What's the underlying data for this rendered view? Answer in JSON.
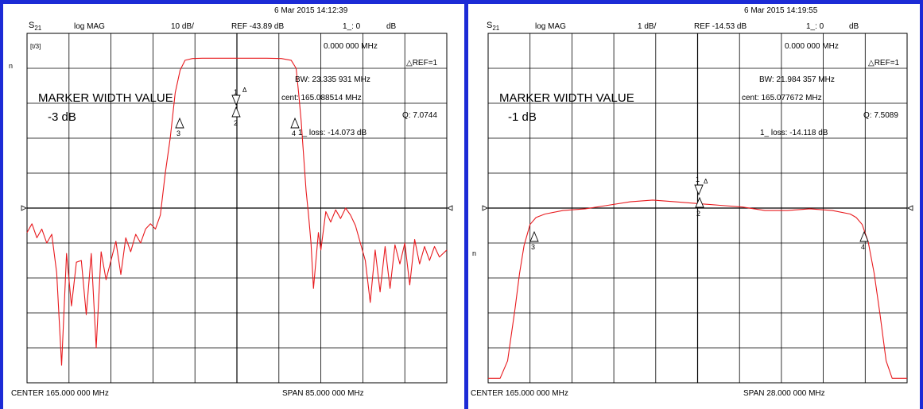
{
  "colors": {
    "frame": "#1c2bd6",
    "trace": "#e8191d",
    "grid": "#000000"
  },
  "panels": [
    {
      "timestamp": "6 Mar 2015  14:12:39",
      "param_main": "S",
      "param_sub": "21",
      "format": "log MAG",
      "scale": "10 dB/",
      "ref": "REF -43.89 dB",
      "marker_readout": "1_: 0",
      "marker_unit": "dB",
      "side_mark_left": "n",
      "aux_icon_label": "[t/3]",
      "marker_freq": "0.000 000 MHz",
      "ref_marker": "REF=1",
      "bw": "BW:  23.335 931 MHz",
      "cent": "cent:  165.088514 MHz",
      "q": "Q: 7.0744",
      "loss": "1_ loss: -14.073 dB",
      "title": "MARKER WIDTH VALUE",
      "level": "-3 dB",
      "center": "CENTER  165.000 000 MHz",
      "span": "SPAN  85.000 000 MHz",
      "markers": [
        {
          "id": "1",
          "label": "1",
          "delta": "Δ"
        },
        {
          "id": "2",
          "label": "2"
        },
        {
          "id": "3",
          "label": "3"
        },
        {
          "id": "4",
          "label": "4"
        }
      ]
    },
    {
      "timestamp": "6 Mar 2015  14:19:55",
      "param_main": "S",
      "param_sub": "21",
      "format": "log MAG",
      "scale": "1 dB/",
      "ref": "REF -14.53 dB",
      "marker_readout": "1_: 0",
      "marker_unit": "dB",
      "side_mark_left": "n",
      "marker_freq": "0.000 000 MHz",
      "ref_marker": "REF=1",
      "bw": "BW:  21.984 357 MHz",
      "cent": "cent:  165.077672 MHz",
      "q": "Q: 7.5089",
      "loss": "1_ loss: -14.118 dB",
      "title": "MARKER WIDTH VALUE",
      "level": "-1 dB",
      "center": "CENTER  165.000 000 MHz",
      "span": "SPAN  28.000 000 MHz",
      "markers": [
        {
          "id": "1",
          "label": "1",
          "delta": "Δ"
        },
        {
          "id": "2",
          "label": "2"
        },
        {
          "id": "3",
          "label": "3"
        },
        {
          "id": "4",
          "label": "4"
        }
      ]
    }
  ],
  "chart_data": [
    {
      "type": "line",
      "x_center_mhz": 165.0,
      "x_span_mhz": 85.0,
      "xlim": [
        122.5,
        207.5
      ],
      "y_scale_db_per_div": 10,
      "y_ref_db": -43.89,
      "grid": true,
      "x": [
        122.5,
        123.5,
        124.5,
        125.5,
        126.5,
        127.5,
        128.5,
        129.5,
        130.5,
        131.5,
        132.5,
        133.5,
        134.5,
        135.5,
        136.5,
        137.5,
        138.5,
        139.5,
        140.5,
        141.5,
        142.5,
        143.5,
        144.5,
        145.5,
        146.5,
        147.5,
        148.5,
        149.5,
        150.5,
        151.5,
        152.5,
        153.5,
        154.5,
        156.0,
        158.0,
        160.0,
        162.0,
        165.0,
        168.0,
        171.0,
        174.0,
        176.0,
        177.0,
        177.5,
        178.0,
        178.5,
        179.0,
        179.5,
        180.0,
        180.5,
        181.0,
        181.5,
        182.0,
        183.0,
        184.0,
        185.0,
        186.0,
        187.0,
        188.0,
        189.0,
        190.0,
        191.0,
        192.0,
        193.0,
        194.0,
        195.0,
        196.0,
        197.0,
        198.0,
        199.0,
        200.0,
        201.0,
        202.0,
        203.0,
        204.0,
        205.0,
        206.0,
        207.5
      ],
      "y": [
        -50.9,
        -48.4,
        -52.4,
        -49.9,
        -53.9,
        -51.4,
        -62.4,
        -88.9,
        -56.9,
        -71.9,
        -59.4,
        -58.9,
        -74.4,
        -56.9,
        -83.9,
        -56.4,
        -64.4,
        -58.9,
        -53.4,
        -62.9,
        -52.4,
        -56.4,
        -51.4,
        -53.9,
        -49.9,
        -48.4,
        -49.9,
        -45.9,
        -33.9,
        -23.9,
        -10.9,
        -4.4,
        -1.6,
        -1.1,
        -1.0,
        -1.0,
        -1.0,
        -1.0,
        -1.0,
        -1.0,
        -1.1,
        -1.6,
        -3.9,
        -10.9,
        -18.9,
        -28.9,
        -38.9,
        -45.9,
        -53.9,
        -66.9,
        -58.9,
        -50.9,
        -55.9,
        -44.9,
        -47.9,
        -44.4,
        -46.9,
        -43.9,
        -45.9,
        -48.9,
        -53.9,
        -58.9,
        -70.9,
        -55.9,
        -67.9,
        -54.9,
        -66.9,
        -54.4,
        -59.9,
        -53.9,
        -65.9,
        -52.9,
        -59.9,
        -54.9,
        -58.9,
        -54.9,
        -57.9,
        -55.9
      ]
    },
    {
      "type": "line",
      "x_center_mhz": 165.0,
      "x_span_mhz": 28.0,
      "xlim": [
        151.0,
        179.0
      ],
      "y_scale_db_per_div": 1,
      "y_ref_db": -14.53,
      "grid": true,
      "x": [
        151.0,
        151.8,
        152.3,
        152.8,
        153.1,
        153.4,
        153.8,
        154.2,
        154.8,
        156.0,
        157.5,
        159.0,
        160.5,
        162.0,
        163.5,
        165.0,
        166.5,
        168.0,
        169.5,
        171.0,
        172.5,
        174.0,
        175.2,
        175.6,
        176.0,
        176.4,
        176.8,
        177.2,
        177.6,
        178.0,
        179.0
      ],
      "y": [
        -19.4,
        -19.4,
        -18.9,
        -17.4,
        -16.4,
        -15.6,
        -15.0,
        -14.8,
        -14.7,
        -14.6,
        -14.55,
        -14.45,
        -14.35,
        -14.3,
        -14.35,
        -14.4,
        -14.45,
        -14.5,
        -14.6,
        -14.6,
        -14.55,
        -14.6,
        -14.7,
        -14.8,
        -15.0,
        -15.5,
        -16.4,
        -17.6,
        -18.9,
        -19.4,
        -19.4
      ]
    }
  ]
}
